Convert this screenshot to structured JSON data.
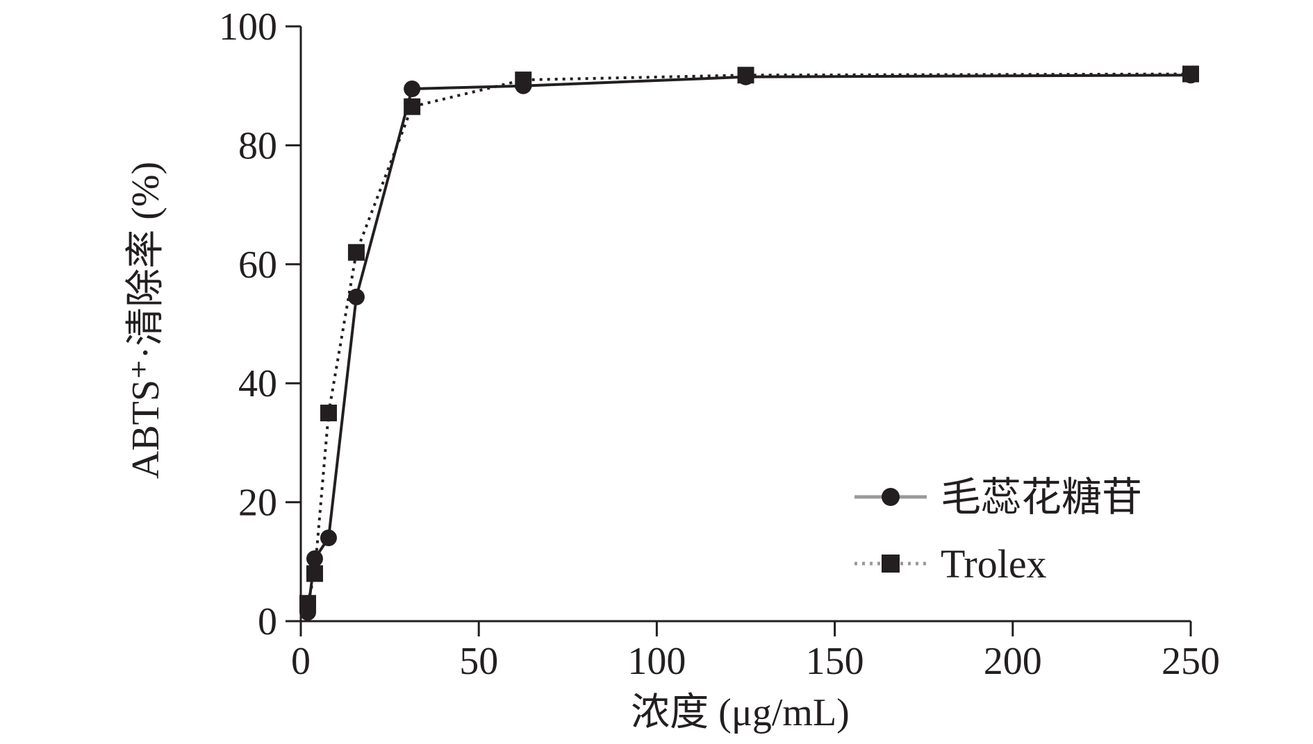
{
  "chart_data": {
    "type": "line",
    "title": "",
    "xlabel": "浓度 (μg/mL)",
    "ylabel": "ABTS⁺·清除率 (%)",
    "xlim": [
      0,
      250
    ],
    "ylim": [
      0,
      100
    ],
    "x_ticks": [
      "0",
      "50",
      "100",
      "150",
      "200",
      "250"
    ],
    "y_ticks": [
      "0",
      "20",
      "40",
      "60",
      "80",
      "100"
    ],
    "grid": false,
    "legend_position": "bottom-right",
    "series": [
      {
        "name": "毛蕊花糖苷",
        "line_style": "solid",
        "marker": "circle",
        "color": "#231f20",
        "x": [
          1.95,
          3.9,
          7.8,
          15.6,
          31.25,
          62.5,
          125,
          250
        ],
        "y": [
          1.5,
          10.5,
          14,
          54.5,
          89.5,
          90,
          91.5,
          91.8
        ]
      },
      {
        "name": "Trolex",
        "line_style": "dotted",
        "marker": "square",
        "color": "#231f20",
        "x": [
          1.95,
          3.9,
          7.8,
          15.6,
          31.25,
          62.5,
          125,
          250
        ],
        "y": [
          3,
          8,
          35,
          62,
          86.5,
          91,
          91.8,
          92
        ]
      }
    ]
  }
}
